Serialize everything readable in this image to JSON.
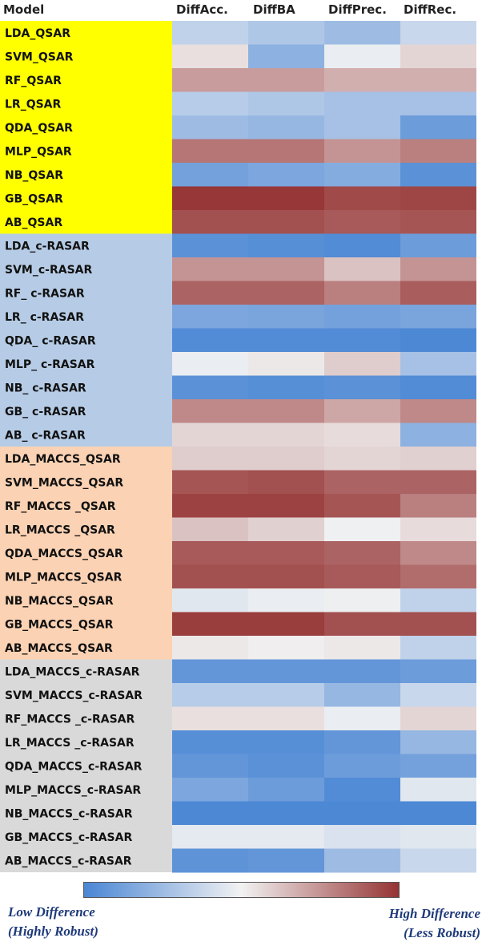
{
  "chart_data": {
    "type": "heatmap",
    "header_label": "Model",
    "columns": [
      "DiffAcc.",
      "DiffBA",
      "DiffPrec.",
      "DiffRec."
    ],
    "groups": [
      {
        "color": "#ffff00",
        "rows": [
          "LDA_QSAR",
          "SVM_QSAR",
          "RF_QSAR",
          "LR_QSAR",
          "QDA_QSAR",
          "MLP_QSAR",
          "NB_QSAR",
          "GB_QSAR",
          "AB_QSAR"
        ]
      },
      {
        "color": "#b6cce6",
        "rows": [
          "LDA_c-RASAR",
          "SVM_c-RASAR",
          "RF_ c-RASAR",
          "LR_ c-RASAR",
          "QDA_ c-RASAR",
          "MLP_ c-RASAR",
          "NB_ c-RASAR",
          "GB_ c-RASAR",
          "AB_ c-RASAR"
        ]
      },
      {
        "color": "#fbd2b3",
        "rows": [
          "LDA_MACCS_QSAR",
          "SVM_MACCS_QSAR",
          "RF_MACCS _QSAR",
          "LR_MACCS _QSAR",
          "QDA_MACCS_QSAR",
          "MLP_MACCS_QSAR",
          "NB_MACCS_QSAR",
          "GB_MACCS_QSAR",
          "AB_MACCS_QSAR"
        ]
      },
      {
        "color": "#d9d9d9",
        "rows": [
          "LDA_MACCS_c-RASAR",
          "SVM_MACCS_c-RASAR",
          "RF_MACCS _c-RASAR",
          "LR_MACCS _c-RASAR",
          "QDA_MACCS_c-RASAR",
          "MLP_MACCS_c-RASAR",
          "NB_MACCS_c-RASAR",
          "GB_MACCS_c-RASAR",
          "AB_MACCS_c-RASAR"
        ]
      }
    ],
    "values": [
      [
        -0.3,
        -0.4,
        -0.5,
        -0.25
      ],
      [
        0.1,
        -0.6,
        -0.05,
        0.15
      ],
      [
        0.45,
        0.45,
        0.35,
        0.35
      ],
      [
        -0.35,
        -0.4,
        -0.45,
        -0.45
      ],
      [
        -0.5,
        -0.55,
        -0.45,
        -0.8
      ],
      [
        0.65,
        0.65,
        0.5,
        0.6
      ],
      [
        -0.75,
        -0.7,
        -0.65,
        -0.9
      ],
      [
        0.98,
        0.98,
        0.88,
        0.9
      ],
      [
        0.85,
        0.85,
        0.8,
        0.82
      ],
      [
        -0.9,
        -0.92,
        -0.95,
        -0.8
      ],
      [
        0.5,
        0.5,
        0.25,
        0.5
      ],
      [
        0.75,
        0.75,
        0.6,
        0.78
      ],
      [
        -0.7,
        -0.72,
        -0.75,
        -0.72
      ],
      [
        -0.95,
        -0.95,
        -0.95,
        -0.98
      ],
      [
        -0.05,
        0.05,
        0.2,
        -0.45
      ],
      [
        -0.9,
        -0.92,
        -0.9,
        -0.95
      ],
      [
        0.55,
        0.55,
        0.4,
        0.55
      ],
      [
        0.15,
        0.15,
        0.12,
        -0.6
      ],
      [
        0.2,
        0.2,
        0.15,
        0.18
      ],
      [
        0.82,
        0.85,
        0.75,
        0.75
      ],
      [
        0.92,
        0.92,
        0.82,
        0.6
      ],
      [
        0.25,
        0.18,
        -0.02,
        0.12
      ],
      [
        0.8,
        0.8,
        0.75,
        0.55
      ],
      [
        0.85,
        0.85,
        0.8,
        0.7
      ],
      [
        -0.1,
        -0.05,
        -0.03,
        -0.3
      ],
      [
        0.95,
        0.95,
        0.85,
        0.85
      ],
      [
        0.05,
        0.02,
        0.05,
        -0.3
      ],
      [
        -0.85,
        -0.85,
        -0.85,
        -0.8
      ],
      [
        -0.35,
        -0.35,
        -0.55,
        -0.25
      ],
      [
        0.1,
        0.1,
        -0.05,
        0.15
      ],
      [
        -0.92,
        -0.92,
        -0.85,
        -0.55
      ],
      [
        -0.85,
        -0.9,
        -0.8,
        -0.75
      ],
      [
        -0.7,
        -0.8,
        -0.95,
        -0.1
      ],
      [
        -0.98,
        -0.98,
        -0.98,
        -0.98
      ],
      [
        -0.08,
        -0.08,
        -0.15,
        -0.1
      ],
      [
        -0.88,
        -0.85,
        -0.5,
        -0.25
      ]
    ],
    "value_range": [
      -1,
      1
    ],
    "colorscale": {
      "low": "#4a86d4",
      "mid": "#f2f2f2",
      "high": "#953333"
    },
    "legend": {
      "placement": "bottom",
      "low_line1": "Low Difference",
      "low_line2": "(Highly Robust)",
      "high_line1": "High Difference",
      "high_line2": "(Less Robust)"
    }
  }
}
